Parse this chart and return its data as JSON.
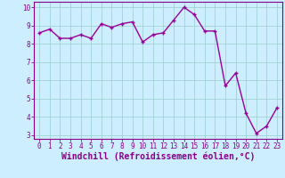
{
  "x": [
    0,
    1,
    2,
    3,
    4,
    5,
    6,
    7,
    8,
    9,
    10,
    11,
    12,
    13,
    14,
    15,
    16,
    17,
    18,
    19,
    20,
    21,
    22,
    23
  ],
  "y": [
    8.6,
    8.8,
    8.3,
    8.3,
    8.5,
    8.3,
    9.1,
    8.9,
    9.1,
    9.2,
    8.1,
    8.5,
    8.6,
    9.3,
    10.0,
    9.6,
    8.7,
    8.7,
    5.7,
    6.4,
    4.2,
    3.1,
    3.5,
    4.5
  ],
  "line_color": "#990099",
  "marker": "+",
  "marker_size": 3,
  "bg_color": "#cceeff",
  "grid_color": "#99cccc",
  "xlabel": "Windchill (Refroidissement éolien,°C)",
  "xlim_min": -0.5,
  "xlim_max": 23.5,
  "ylim_min": 2.8,
  "ylim_max": 10.3,
  "yticks": [
    3,
    4,
    5,
    6,
    7,
    8,
    9,
    10
  ],
  "xticks": [
    0,
    1,
    2,
    3,
    4,
    5,
    6,
    7,
    8,
    9,
    10,
    11,
    12,
    13,
    14,
    15,
    16,
    17,
    18,
    19,
    20,
    21,
    22,
    23
  ],
  "tick_fontsize": 5.5,
  "xlabel_fontsize": 7.0,
  "text_color": "#880088",
  "border_color": "#880088",
  "linewidth": 1.0,
  "markeredgewidth": 1.0
}
